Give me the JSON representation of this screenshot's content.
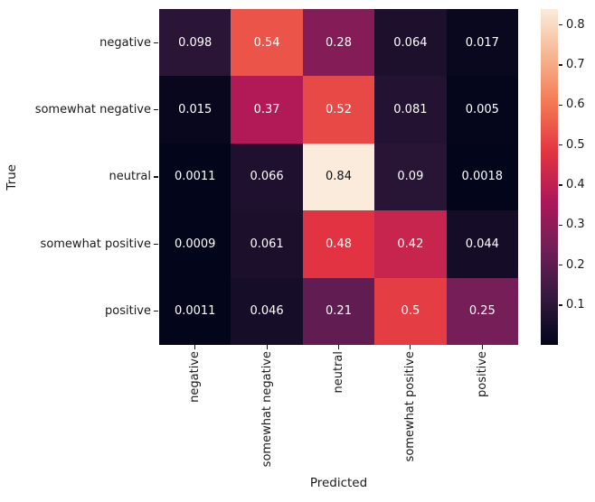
{
  "chart_data": {
    "type": "heatmap",
    "title": "",
    "xlabel": "Predicted",
    "ylabel": "True",
    "x_categories": [
      "negative",
      "somewhat negative",
      "neutral",
      "somewhat positive",
      "positive"
    ],
    "y_categories": [
      "negative",
      "somewhat negative",
      "neutral",
      "somewhat positive",
      "positive"
    ],
    "values": [
      [
        0.098,
        0.54,
        0.28,
        0.064,
        0.017
      ],
      [
        0.015,
        0.37,
        0.52,
        0.081,
        0.005
      ],
      [
        0.0011,
        0.066,
        0.84,
        0.09,
        0.0018
      ],
      [
        0.0009,
        0.061,
        0.48,
        0.42,
        0.044
      ],
      [
        0.0011,
        0.046,
        0.21,
        0.5,
        0.25
      ]
    ],
    "annotations": [
      [
        "0.098",
        "0.54",
        "0.28",
        "0.064",
        "0.017"
      ],
      [
        "0.015",
        "0.37",
        "0.52",
        "0.081",
        "0.005"
      ],
      [
        "0.0011",
        "0.066",
        "0.84",
        "0.09",
        "0.0018"
      ],
      [
        "0.0009",
        "0.061",
        "0.48",
        "0.42",
        "0.044"
      ],
      [
        "0.0011",
        "0.046",
        "0.21",
        "0.5",
        "0.25"
      ]
    ],
    "vmin": 0.0009,
    "vmax": 0.84,
    "colorbar_ticks": [
      {
        "value": 0.1,
        "label": "0.1"
      },
      {
        "value": 0.2,
        "label": "0.2"
      },
      {
        "value": 0.3,
        "label": "0.3"
      },
      {
        "value": 0.4,
        "label": "0.4"
      },
      {
        "value": 0.5,
        "label": "0.5"
      },
      {
        "value": 0.6,
        "label": "0.6"
      },
      {
        "value": 0.7,
        "label": "0.7"
      },
      {
        "value": 0.8,
        "label": "0.8"
      }
    ],
    "legend_position": "right-colorbar",
    "grid": false,
    "colormap": {
      "name": "rocket",
      "anchors": [
        {
          "t": 0.0,
          "color": "#03051A"
        },
        {
          "t": 0.143,
          "color": "#35193E"
        },
        {
          "t": 0.286,
          "color": "#701F57"
        },
        {
          "t": 0.429,
          "color": "#AD1759"
        },
        {
          "t": 0.571,
          "color": "#E13342"
        },
        {
          "t": 0.714,
          "color": "#F37651"
        },
        {
          "t": 0.857,
          "color": "#F6B48F"
        },
        {
          "t": 1.0,
          "color": "#FAEBDD"
        }
      ]
    }
  },
  "colors": {
    "background": "#ffffff",
    "label_text": "#1a1a1a",
    "annot_light": "#ffffff",
    "annot_dark": "#101010"
  }
}
